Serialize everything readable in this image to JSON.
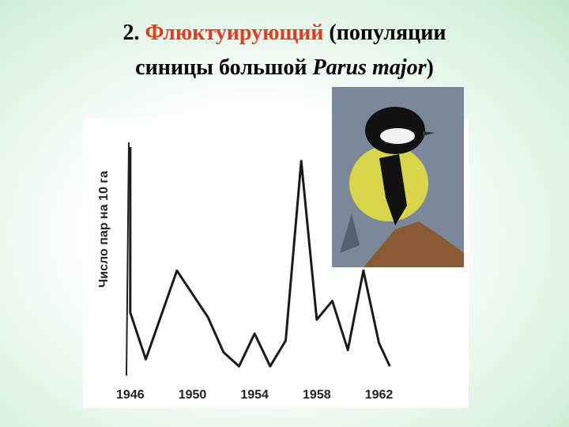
{
  "chart_data": {
    "type": "line",
    "title_parts": [
      "2. ",
      "Флюктуирующий",
      " (популяции",
      "синицы большой ",
      "Parus major",
      ")"
    ],
    "ylabel": "Число пар на 10 га",
    "x": [
      1946,
      1946,
      1947,
      1949,
      1951,
      1952,
      1953,
      1954,
      1955,
      1956,
      1957,
      1958,
      1959,
      1960,
      1961,
      1962,
      1962.7
    ],
    "series": [
      {
        "color": "#1a1a1a",
        "values": [
          98,
          27,
          7,
          45,
          25,
          10,
          4,
          18,
          4,
          15,
          92,
          24,
          32,
          11,
          45,
          14,
          4
        ]
      }
    ],
    "xlim": [
      1945.5,
      1963.5
    ],
    "xticks": [
      1946,
      1950,
      1954,
      1958,
      1962
    ],
    "ylim": [
      0,
      100
    ]
  }
}
